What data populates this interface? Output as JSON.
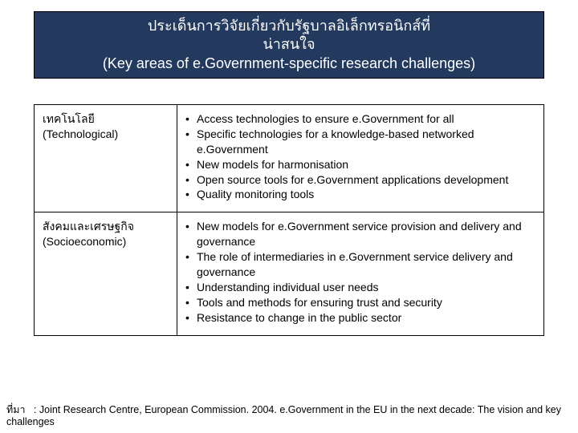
{
  "title": {
    "line1": "ประเด็นการวิจัยเกี่ยวกับรัฐบาลอิเล็กทรอนิกส์ที่",
    "line2": "น่าสนใจ",
    "line3": "(Key areas of e.Government-specific research challenges)"
  },
  "rows": [
    {
      "left_th": "เทคโนโลยี",
      "left_en": "(Technological)",
      "bullets": [
        "Access technologies to ensure e.Government for all",
        "Specific technologies for a knowledge-based networked e.Government",
        "New models for harmonisation",
        "Open source tools for e.Government applications development",
        "Quality monitoring tools"
      ]
    },
    {
      "left_th": "สังคมและเศรษฐกิจ",
      "left_en": "(Socioeconomic)",
      "bullets": [
        "New models for e.Government service provision and delivery and governance",
        "The role of intermediaries in e.Government service delivery and governance",
        "Understanding individual user needs",
        "Tools and methods for ensuring trust and security",
        "Resistance to change in the public sector"
      ]
    }
  ],
  "source": {
    "label": "ที่มา",
    "text": ": Joint Research Centre, European Commission. 2004. e.Government in the EU in the next decade: The vision and key challenges"
  }
}
